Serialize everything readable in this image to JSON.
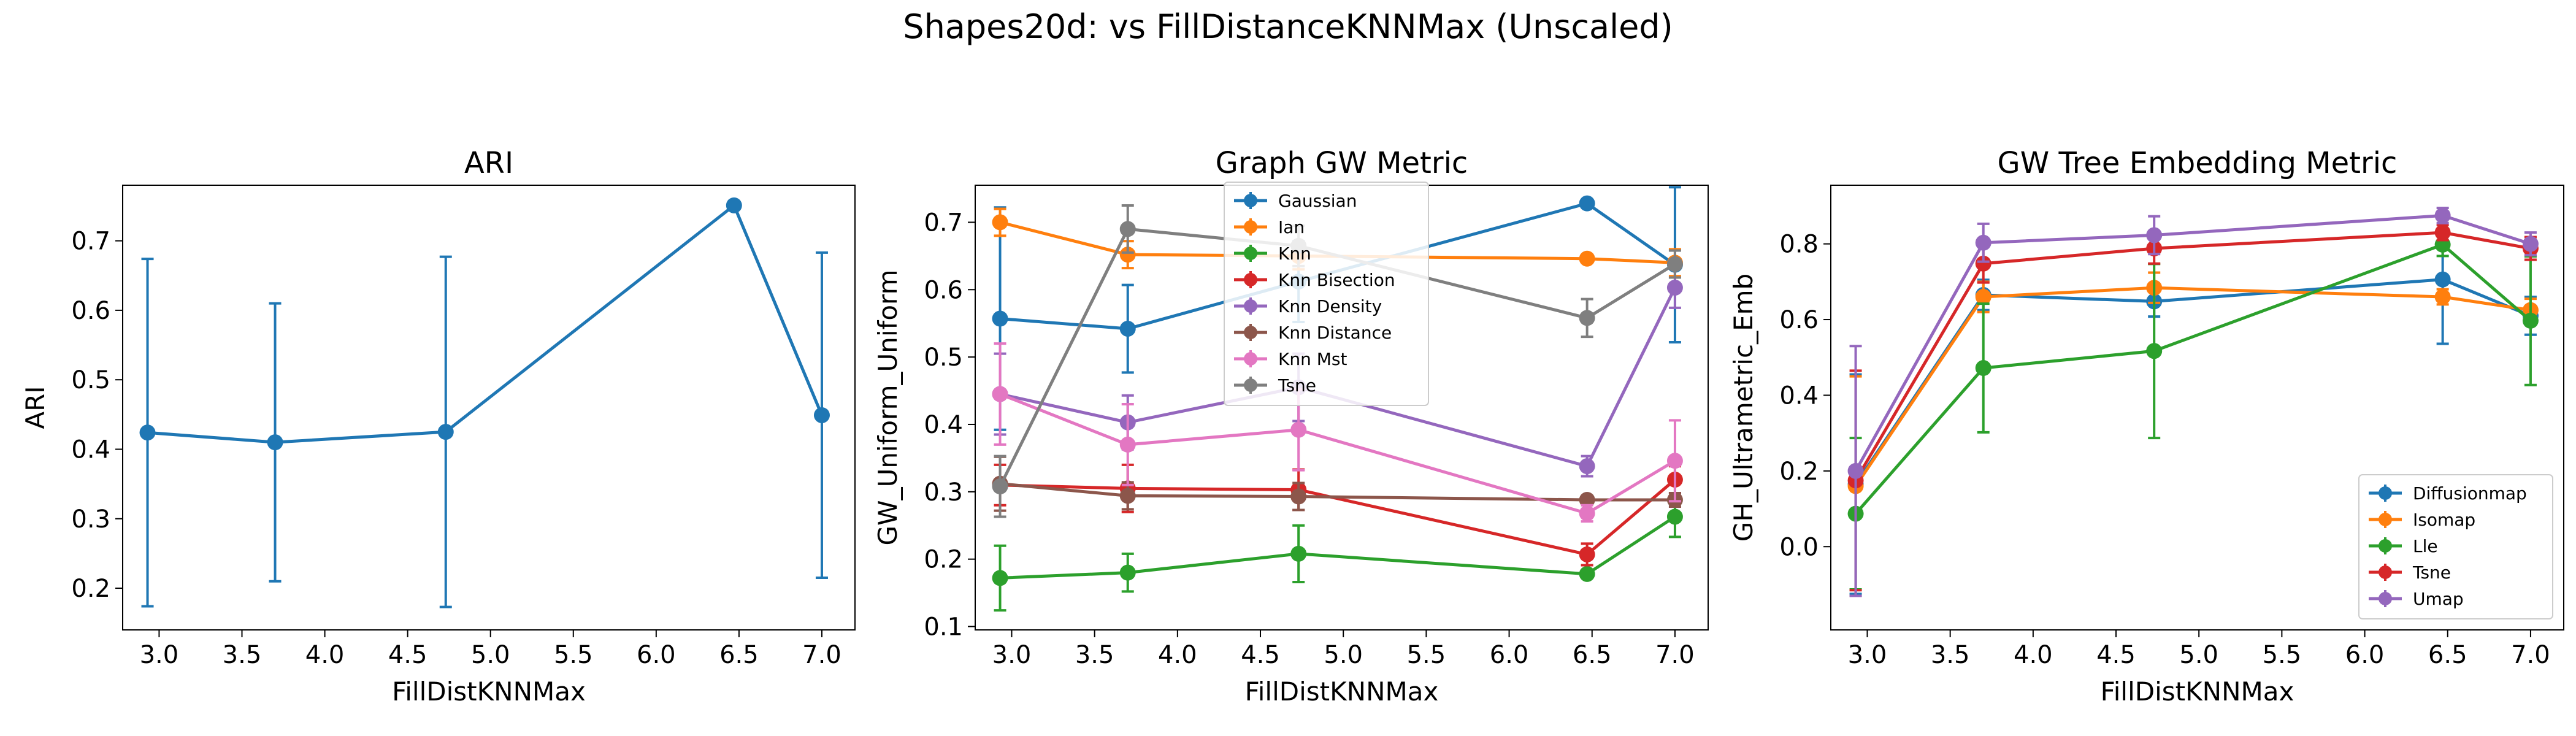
{
  "suptitle": "Shapes20d: vs FillDistanceKNNMax (Unscaled)",
  "chart_data": [
    {
      "type": "line",
      "title": "ARI",
      "xlabel": "FillDistKNNMax",
      "ylabel": "ARI",
      "xlim": [
        2.78,
        7.2
      ],
      "ylim": [
        0.14,
        0.78
      ],
      "xticks": [
        3.0,
        3.5,
        4.0,
        4.5,
        5.0,
        5.5,
        6.0,
        6.5,
        7.0
      ],
      "xtick_labels": [
        "3.0",
        "3.5",
        "4.0",
        "4.5",
        "5.0",
        "5.5",
        "6.0",
        "6.5",
        "7.0"
      ],
      "yticks": [
        0.2,
        0.3,
        0.4,
        0.5,
        0.6,
        0.7
      ],
      "ytick_labels": [
        "0.2",
        "0.3",
        "0.4",
        "0.5",
        "0.6",
        "0.7"
      ],
      "x": [
        2.93,
        3.7,
        4.73,
        6.47,
        7.0
      ],
      "series": [
        {
          "name": "",
          "color": "#1f77b4",
          "values": [
            0.424,
            0.41,
            0.425,
            0.751,
            0.449
          ],
          "err": [
            0.25,
            0.2,
            0.252,
            0.0,
            0.234
          ]
        }
      ]
    },
    {
      "type": "line",
      "title": "Graph GW Metric",
      "xlabel": "FillDistKNNMax",
      "ylabel": "GW_Uniform_Uniform",
      "xlim": [
        2.78,
        7.2
      ],
      "ylim": [
        0.095,
        0.755
      ],
      "xticks": [
        3.0,
        3.5,
        4.0,
        4.5,
        5.0,
        5.5,
        6.0,
        6.5,
        7.0
      ],
      "xtick_labels": [
        "3.0",
        "3.5",
        "4.0",
        "4.5",
        "5.0",
        "5.5",
        "6.0",
        "6.5",
        "7.0"
      ],
      "yticks": [
        0.1,
        0.2,
        0.3,
        0.4,
        0.5,
        0.6,
        0.7
      ],
      "ytick_labels": [
        "0.1",
        "0.2",
        "0.3",
        "0.4",
        "0.5",
        "0.6",
        "0.7"
      ],
      "legend": "upper center",
      "x": [
        2.93,
        3.7,
        4.73,
        6.47,
        7.0
      ],
      "series": [
        {
          "name": "Gaussian",
          "color": "#1f77b4",
          "values": [
            0.557,
            0.542,
            0.612,
            0.728,
            0.637
          ],
          "err": [
            0.165,
            0.065,
            0.06,
            0.0,
            0.115
          ]
        },
        {
          "name": "Ian",
          "color": "#ff7f0e",
          "values": [
            0.7,
            0.652,
            0.65,
            0.646,
            0.64
          ],
          "err": [
            0.02,
            0.02,
            0.02,
            0.0,
            0.02
          ]
        },
        {
          "name": "Knn",
          "color": "#2ca02c",
          "values": [
            0.172,
            0.18,
            0.208,
            0.178,
            0.263
          ],
          "err": [
            0.048,
            0.028,
            0.042,
            0.0,
            0.03
          ]
        },
        {
          "name": "Knn Bisection",
          "color": "#d62728",
          "values": [
            0.31,
            0.305,
            0.303,
            0.207,
            0.318
          ],
          "err": [
            0.03,
            0.035,
            0.03,
            0.016,
            0.02
          ]
        },
        {
          "name": "Knn Density",
          "color": "#9467bd",
          "values": [
            0.445,
            0.403,
            0.455,
            0.338,
            0.603
          ],
          "err": [
            0.06,
            0.04,
            0.05,
            0.015,
            0.03
          ]
        },
        {
          "name": "Knn Distance",
          "color": "#8c564b",
          "values": [
            0.312,
            0.294,
            0.293,
            0.288,
            0.288
          ],
          "err": [
            0.04,
            0.02,
            0.02,
            0.0,
            0.01
          ]
        },
        {
          "name": "Knn Mst",
          "color": "#e377c2",
          "values": [
            0.445,
            0.37,
            0.392,
            0.268,
            0.346
          ],
          "err": [
            0.075,
            0.06,
            0.06,
            0.012,
            0.06
          ]
        },
        {
          "name": "Tsne",
          "color": "#7f7f7f",
          "values": [
            0.308,
            0.69,
            0.665,
            0.558,
            0.638
          ],
          "err": [
            0.045,
            0.035,
            0.03,
            0.028,
            0.02
          ]
        }
      ]
    },
    {
      "type": "line",
      "title": "GW Tree Embedding Metric",
      "xlabel": "FillDistKNNMax",
      "ylabel": "GH_Ultrametric_Emb",
      "xlim": [
        2.78,
        7.2
      ],
      "ylim": [
        -0.22,
        0.955
      ],
      "xticks": [
        3.0,
        3.5,
        4.0,
        4.5,
        5.0,
        5.5,
        6.0,
        6.5,
        7.0
      ],
      "xtick_labels": [
        "3.0",
        "3.5",
        "4.0",
        "4.5",
        "5.0",
        "5.5",
        "6.0",
        "6.5",
        "7.0"
      ],
      "yticks": [
        0.0,
        0.2,
        0.4,
        0.6,
        0.8
      ],
      "ytick_labels": [
        "0.0",
        "0.2",
        "0.4",
        "0.6",
        "0.8"
      ],
      "legend": "lower right",
      "x": [
        2.93,
        3.7,
        4.73,
        6.47,
        7.0
      ],
      "series": [
        {
          "name": "Diffusionmap",
          "color": "#1f77b4",
          "values": [
            0.165,
            0.665,
            0.648,
            0.706,
            0.61
          ],
          "err": [
            0.29,
            0.04,
            0.04,
            0.17,
            0.05
          ]
        },
        {
          "name": "Isomap",
          "color": "#ff7f0e",
          "values": [
            0.16,
            0.66,
            0.684,
            0.66,
            0.625
          ],
          "err": [
            0.29,
            0.04,
            0.04,
            0.02,
            0.03
          ]
        },
        {
          "name": "Lle",
          "color": "#2ca02c",
          "values": [
            0.087,
            0.472,
            0.517,
            0.798,
            0.597
          ],
          "err": [
            0.2,
            0.17,
            0.23,
            0.03,
            0.17
          ]
        },
        {
          "name": "Tsne",
          "color": "#d62728",
          "values": [
            0.175,
            0.748,
            0.788,
            0.83,
            0.788
          ],
          "err": [
            0.29,
            0.05,
            0.04,
            0.02,
            0.03
          ]
        },
        {
          "name": "Umap",
          "color": "#9467bd",
          "values": [
            0.2,
            0.803,
            0.823,
            0.875,
            0.8
          ],
          "err": [
            0.33,
            0.05,
            0.05,
            0.02,
            0.03
          ]
        }
      ]
    }
  ]
}
